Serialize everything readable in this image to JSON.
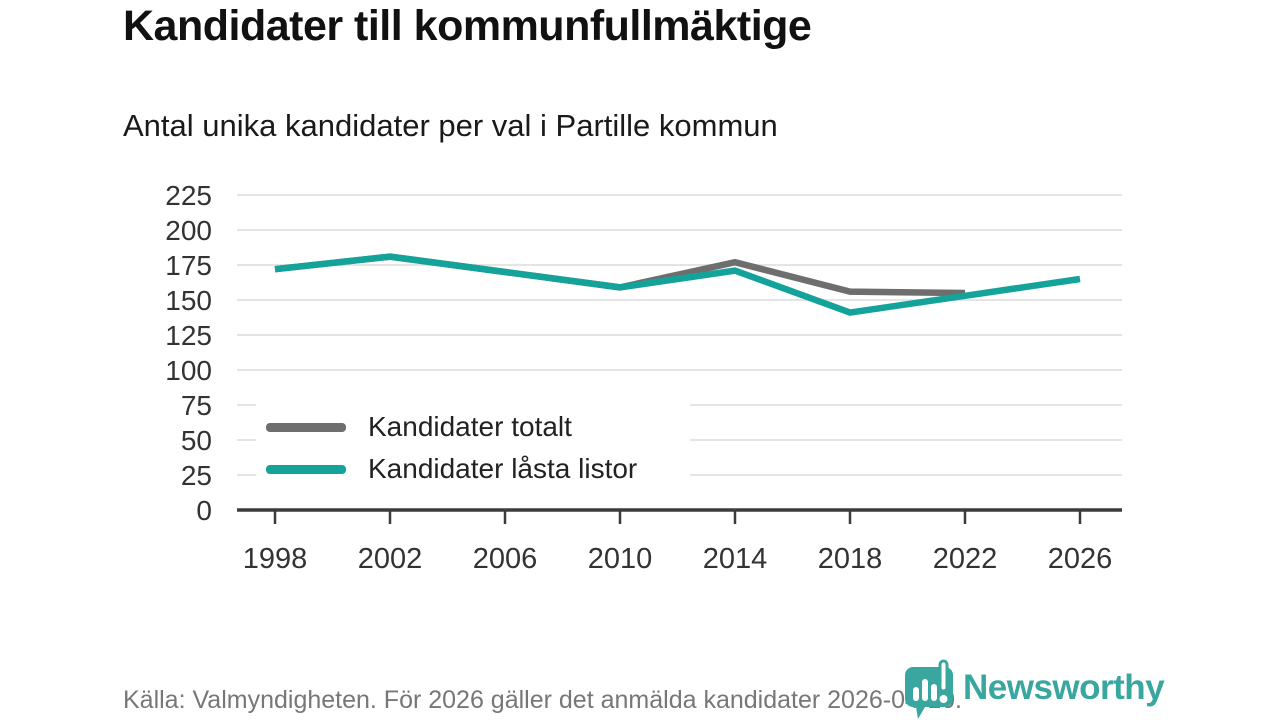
{
  "header": {
    "title": "Kandidater till kommunfullmäktige",
    "subtitle": "Antal unika kandidater per val i Partille kommun"
  },
  "chart_data": {
    "type": "line",
    "x": [
      "1998",
      "2002",
      "2006",
      "2010",
      "2014",
      "2018",
      "2022",
      "2026"
    ],
    "series": [
      {
        "name": "Kandidater totalt",
        "color": "#6e6e6e",
        "values": [
          172,
          181,
          170,
          159,
          177,
          156,
          155,
          null
        ]
      },
      {
        "name": "Kandidater låsta listor",
        "color": "#14a39a",
        "values": [
          172,
          181,
          170,
          159,
          171,
          141,
          153,
          165
        ]
      }
    ],
    "title": "Kandidater till kommunfullmäktige",
    "subtitle": "Antal unika kandidater per val i Partille kommun",
    "xlabel": "",
    "ylabel": "",
    "ylim": [
      0,
      225
    ],
    "ytick_step": 25,
    "grid": true,
    "legend_position": "inside-bottom-left"
  },
  "footer": {
    "source_note": "Källa: Valmyndigheten. För 2026 gäller det anmälda kandidater 2026-04-10."
  },
  "branding": {
    "logo_text": "Newsworthy",
    "logo_color": "#3aa6a0"
  },
  "colors": {
    "grid": "#e4e4e4",
    "axis": "#3b3b3b",
    "tick_label": "#333333",
    "legend_text": "#222222",
    "muted_text": "#777777"
  }
}
